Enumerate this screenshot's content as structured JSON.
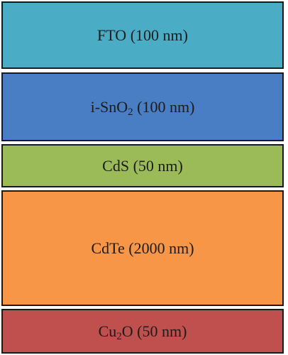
{
  "layers": [
    {
      "pre": "FTO (100 nm)",
      "sub": "",
      "post": "",
      "color": "#4bacc6"
    },
    {
      "pre": "i-SnO",
      "sub": "2",
      "post": " (100 nm)",
      "color": "#4a7ec4"
    },
    {
      "pre": "CdS (50 nm)",
      "sub": "",
      "post": "",
      "color": "#9bbb59"
    },
    {
      "pre": "CdTe (2000 nm)",
      "sub": "",
      "post": "",
      "color": "#f79646"
    },
    {
      "pre": "Cu",
      "sub": "2",
      "post": "O (50 nm)",
      "color": "#c0504d"
    }
  ]
}
